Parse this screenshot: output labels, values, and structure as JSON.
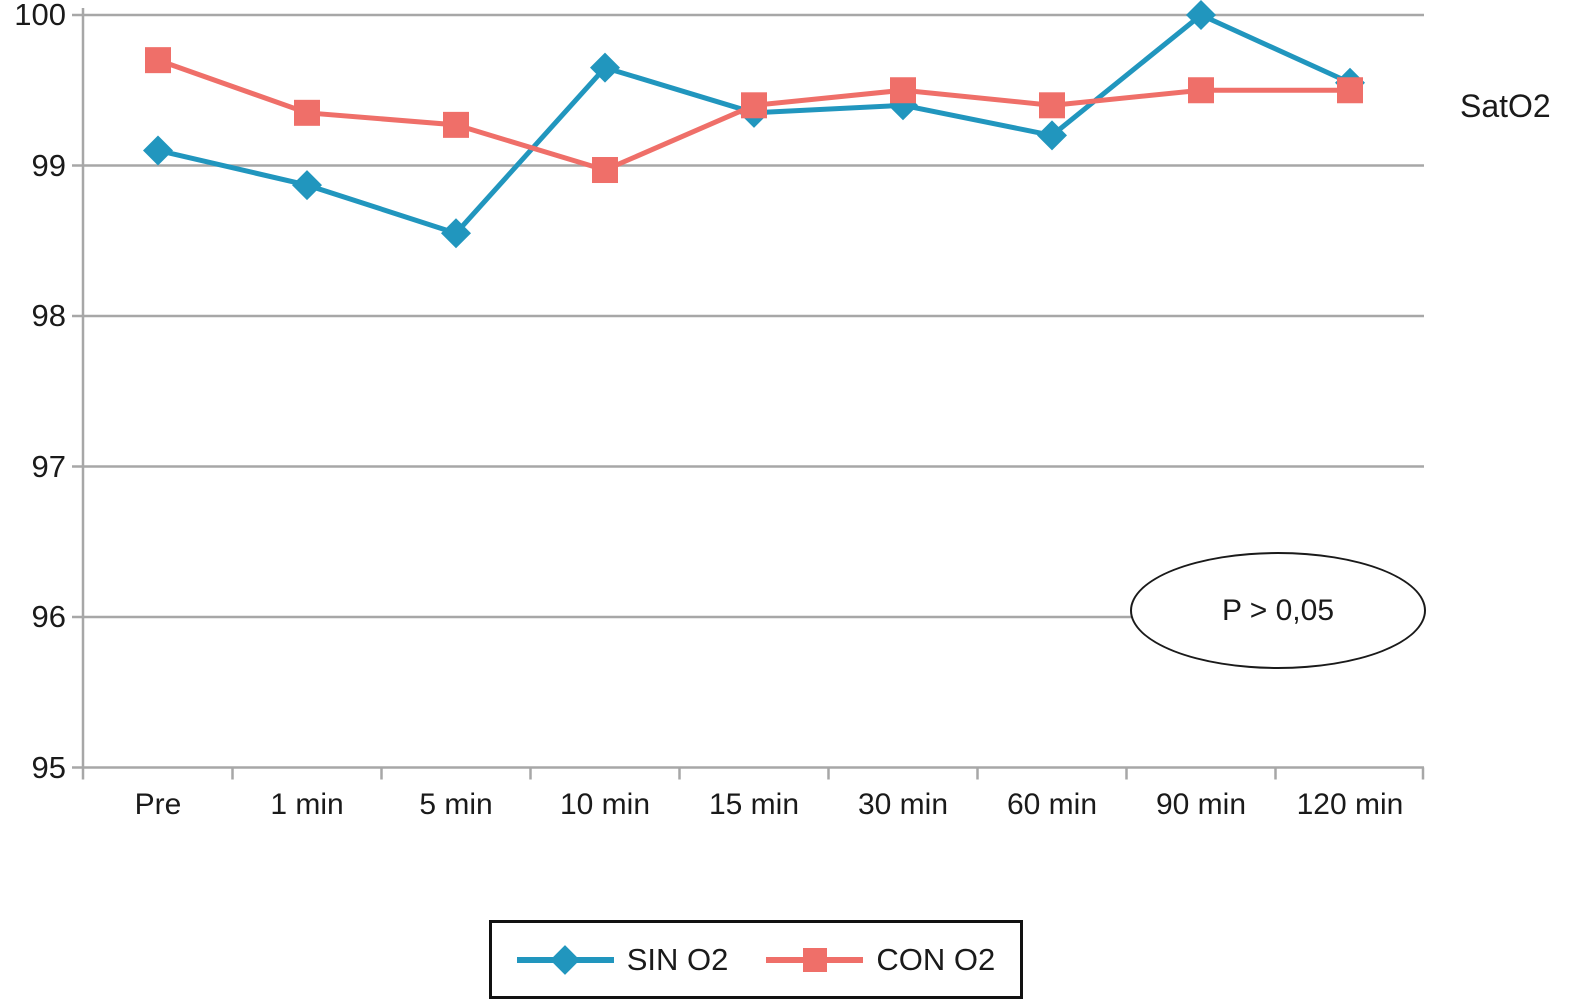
{
  "page": {
    "background": "#ffffff",
    "text_color": "#1a1a1a"
  },
  "chart_data": {
    "type": "line",
    "title": "",
    "right_label": "SatO2",
    "xlabel": "",
    "ylabel": "",
    "ylim": [
      95,
      100
    ],
    "ytick_step": 1,
    "yticks": [
      "100",
      "99",
      "98",
      "97",
      "96",
      "95"
    ],
    "categories": [
      "Pre",
      "1 min",
      "5 min",
      "10 min",
      "15 min",
      "30 min",
      "60 min",
      "90 min",
      "120 min"
    ],
    "series": [
      {
        "name": "SIN O2",
        "marker": "diamond",
        "color": "#2196BE",
        "values": [
          99.1,
          98.87,
          98.55,
          99.65,
          99.35,
          99.4,
          99.2,
          100,
          99.55
        ]
      },
      {
        "name": "CON O2",
        "marker": "square",
        "color": "#EF6F69",
        "values": [
          99.7,
          99.35,
          99.27,
          98.97,
          99.4,
          99.5,
          99.4,
          99.5,
          99.5
        ]
      }
    ],
    "grid": "horizontal",
    "grid_color": "#A7A7A7",
    "legend": {
      "position": "bottom",
      "items": [
        "SIN O2",
        "CON O2"
      ]
    },
    "annotation": {
      "text": "P > 0,05"
    }
  }
}
